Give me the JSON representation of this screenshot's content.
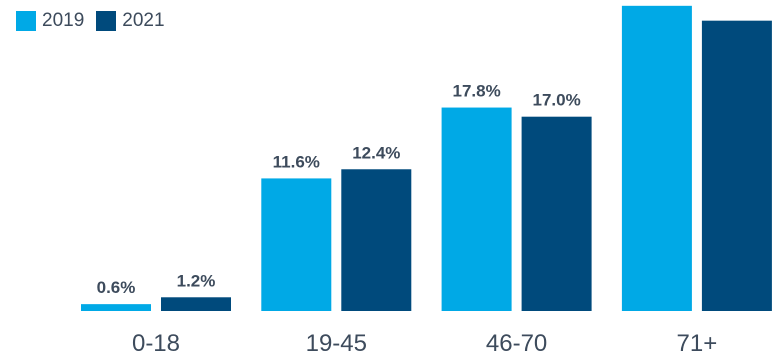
{
  "chart_data": {
    "type": "bar",
    "title": "",
    "xlabel": "",
    "ylabel": "",
    "categories": [
      "0-18",
      "19-45",
      "46-70",
      "71+"
    ],
    "series": [
      {
        "name": "2019",
        "color": "#00a9e6",
        "values": [
          0.6,
          11.6,
          17.8,
          26.7
        ],
        "labels": [
          "0.6%",
          "11.6%",
          "17.8%",
          ""
        ]
      },
      {
        "name": "2021",
        "color": "#004a7c",
        "values": [
          1.2,
          12.4,
          17.0,
          25.4
        ],
        "labels": [
          "1.2%",
          "12.4%",
          "17.0%",
          ""
        ]
      }
    ],
    "ylim": [
      0,
      27.2
    ],
    "grid": false,
    "legend_position": "top-left"
  }
}
